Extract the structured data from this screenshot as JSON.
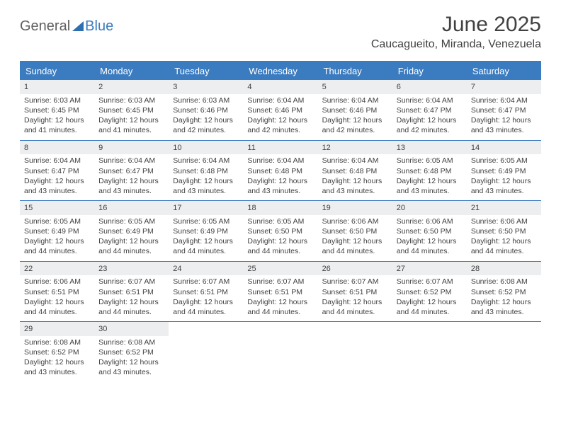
{
  "logo": {
    "text1": "General",
    "text2": "Blue"
  },
  "header": {
    "month_title": "June 2025",
    "location": "Caucagueito, Miranda, Venezuela"
  },
  "calendar": {
    "header_bg": "#3b7bbf",
    "header_fg": "#ffffff",
    "border_color": "#3b7bbf",
    "daynum_bg": "#eceef0",
    "text_color": "#414141",
    "day_names": [
      "Sunday",
      "Monday",
      "Tuesday",
      "Wednesday",
      "Thursday",
      "Friday",
      "Saturday"
    ],
    "weeks": [
      [
        {
          "day": "1",
          "sunrise": "Sunrise: 6:03 AM",
          "sunset": "Sunset: 6:45 PM",
          "daylight": "Daylight: 12 hours and 41 minutes."
        },
        {
          "day": "2",
          "sunrise": "Sunrise: 6:03 AM",
          "sunset": "Sunset: 6:45 PM",
          "daylight": "Daylight: 12 hours and 41 minutes."
        },
        {
          "day": "3",
          "sunrise": "Sunrise: 6:03 AM",
          "sunset": "Sunset: 6:46 PM",
          "daylight": "Daylight: 12 hours and 42 minutes."
        },
        {
          "day": "4",
          "sunrise": "Sunrise: 6:04 AM",
          "sunset": "Sunset: 6:46 PM",
          "daylight": "Daylight: 12 hours and 42 minutes."
        },
        {
          "day": "5",
          "sunrise": "Sunrise: 6:04 AM",
          "sunset": "Sunset: 6:46 PM",
          "daylight": "Daylight: 12 hours and 42 minutes."
        },
        {
          "day": "6",
          "sunrise": "Sunrise: 6:04 AM",
          "sunset": "Sunset: 6:47 PM",
          "daylight": "Daylight: 12 hours and 42 minutes."
        },
        {
          "day": "7",
          "sunrise": "Sunrise: 6:04 AM",
          "sunset": "Sunset: 6:47 PM",
          "daylight": "Daylight: 12 hours and 43 minutes."
        }
      ],
      [
        {
          "day": "8",
          "sunrise": "Sunrise: 6:04 AM",
          "sunset": "Sunset: 6:47 PM",
          "daylight": "Daylight: 12 hours and 43 minutes."
        },
        {
          "day": "9",
          "sunrise": "Sunrise: 6:04 AM",
          "sunset": "Sunset: 6:47 PM",
          "daylight": "Daylight: 12 hours and 43 minutes."
        },
        {
          "day": "10",
          "sunrise": "Sunrise: 6:04 AM",
          "sunset": "Sunset: 6:48 PM",
          "daylight": "Daylight: 12 hours and 43 minutes."
        },
        {
          "day": "11",
          "sunrise": "Sunrise: 6:04 AM",
          "sunset": "Sunset: 6:48 PM",
          "daylight": "Daylight: 12 hours and 43 minutes."
        },
        {
          "day": "12",
          "sunrise": "Sunrise: 6:04 AM",
          "sunset": "Sunset: 6:48 PM",
          "daylight": "Daylight: 12 hours and 43 minutes."
        },
        {
          "day": "13",
          "sunrise": "Sunrise: 6:05 AM",
          "sunset": "Sunset: 6:48 PM",
          "daylight": "Daylight: 12 hours and 43 minutes."
        },
        {
          "day": "14",
          "sunrise": "Sunrise: 6:05 AM",
          "sunset": "Sunset: 6:49 PM",
          "daylight": "Daylight: 12 hours and 43 minutes."
        }
      ],
      [
        {
          "day": "15",
          "sunrise": "Sunrise: 6:05 AM",
          "sunset": "Sunset: 6:49 PM",
          "daylight": "Daylight: 12 hours and 44 minutes."
        },
        {
          "day": "16",
          "sunrise": "Sunrise: 6:05 AM",
          "sunset": "Sunset: 6:49 PM",
          "daylight": "Daylight: 12 hours and 44 minutes."
        },
        {
          "day": "17",
          "sunrise": "Sunrise: 6:05 AM",
          "sunset": "Sunset: 6:49 PM",
          "daylight": "Daylight: 12 hours and 44 minutes."
        },
        {
          "day": "18",
          "sunrise": "Sunrise: 6:05 AM",
          "sunset": "Sunset: 6:50 PM",
          "daylight": "Daylight: 12 hours and 44 minutes."
        },
        {
          "day": "19",
          "sunrise": "Sunrise: 6:06 AM",
          "sunset": "Sunset: 6:50 PM",
          "daylight": "Daylight: 12 hours and 44 minutes."
        },
        {
          "day": "20",
          "sunrise": "Sunrise: 6:06 AM",
          "sunset": "Sunset: 6:50 PM",
          "daylight": "Daylight: 12 hours and 44 minutes."
        },
        {
          "day": "21",
          "sunrise": "Sunrise: 6:06 AM",
          "sunset": "Sunset: 6:50 PM",
          "daylight": "Daylight: 12 hours and 44 minutes."
        }
      ],
      [
        {
          "day": "22",
          "sunrise": "Sunrise: 6:06 AM",
          "sunset": "Sunset: 6:51 PM",
          "daylight": "Daylight: 12 hours and 44 minutes."
        },
        {
          "day": "23",
          "sunrise": "Sunrise: 6:07 AM",
          "sunset": "Sunset: 6:51 PM",
          "daylight": "Daylight: 12 hours and 44 minutes."
        },
        {
          "day": "24",
          "sunrise": "Sunrise: 6:07 AM",
          "sunset": "Sunset: 6:51 PM",
          "daylight": "Daylight: 12 hours and 44 minutes."
        },
        {
          "day": "25",
          "sunrise": "Sunrise: 6:07 AM",
          "sunset": "Sunset: 6:51 PM",
          "daylight": "Daylight: 12 hours and 44 minutes."
        },
        {
          "day": "26",
          "sunrise": "Sunrise: 6:07 AM",
          "sunset": "Sunset: 6:51 PM",
          "daylight": "Daylight: 12 hours and 44 minutes."
        },
        {
          "day": "27",
          "sunrise": "Sunrise: 6:07 AM",
          "sunset": "Sunset: 6:52 PM",
          "daylight": "Daylight: 12 hours and 44 minutes."
        },
        {
          "day": "28",
          "sunrise": "Sunrise: 6:08 AM",
          "sunset": "Sunset: 6:52 PM",
          "daylight": "Daylight: 12 hours and 43 minutes."
        }
      ],
      [
        {
          "day": "29",
          "sunrise": "Sunrise: 6:08 AM",
          "sunset": "Sunset: 6:52 PM",
          "daylight": "Daylight: 12 hours and 43 minutes."
        },
        {
          "day": "30",
          "sunrise": "Sunrise: 6:08 AM",
          "sunset": "Sunset: 6:52 PM",
          "daylight": "Daylight: 12 hours and 43 minutes."
        },
        null,
        null,
        null,
        null,
        null
      ]
    ]
  }
}
